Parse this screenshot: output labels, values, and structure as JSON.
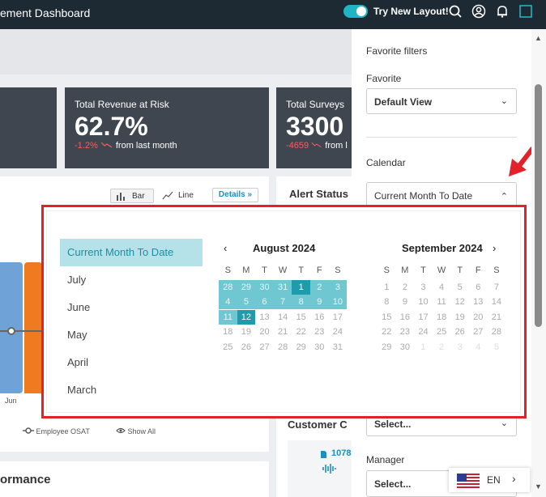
{
  "header": {
    "title": "ement Dashboard",
    "try_new_layout": "Try New Layout!",
    "toggle_on": true
  },
  "cards": [
    {
      "label": "",
      "value": "",
      "delta": "",
      "delta_text": ""
    },
    {
      "label": "Total Revenue at Risk",
      "value": "62.7%",
      "delta": "-1.2%",
      "delta_text": "from last month"
    },
    {
      "label": "Total Surveys",
      "value": "3300",
      "delta": "-4659",
      "delta_text": "from l"
    }
  ],
  "chart_panel": {
    "bar_label": "Bar",
    "line_label": "Line",
    "details_label": "Details »",
    "x_tick": "Jun",
    "legend_employee": "Employee OSAT",
    "legend_show_all": "Show All",
    "bottom_title": "ormance"
  },
  "alert_panel": {
    "title": "Alert Status"
  },
  "customer_panel": {
    "title": "Customer C",
    "count": "1078"
  },
  "filters": {
    "favorite_filters": "Favorite filters",
    "favorite_label": "Favorite",
    "favorite_value": "Default View",
    "calendar_label": "Calendar",
    "calendar_value": "Current Month To Date",
    "select_placeholder": "Select...",
    "manager_label": "Manager",
    "manager_value": "Select..."
  },
  "language": {
    "code": "EN"
  },
  "calendar": {
    "presets": [
      "Current Month To Date",
      "July",
      "June",
      "May",
      "April",
      "March"
    ],
    "active_preset": 0,
    "months": [
      {
        "title": "August 2024",
        "weekdays": [
          "S",
          "M",
          "T",
          "W",
          "T",
          "F",
          "S"
        ],
        "weeks": [
          [
            "28",
            "29",
            "30",
            "31",
            "1",
            "2",
            "3"
          ],
          [
            "4",
            "5",
            "6",
            "7",
            "8",
            "9",
            "10"
          ],
          [
            "11",
            "12",
            "13",
            "14",
            "15",
            "16",
            "17"
          ],
          [
            "18",
            "19",
            "20",
            "21",
            "22",
            "23",
            "24"
          ],
          [
            "25",
            "26",
            "27",
            "28",
            "29",
            "30",
            "31"
          ]
        ],
        "range_start": "1",
        "range_end": "12"
      },
      {
        "title": "September 2024",
        "weekdays": [
          "S",
          "M",
          "T",
          "W",
          "T",
          "F",
          "S"
        ],
        "weeks": [
          [
            "1",
            "2",
            "3",
            "4",
            "5",
            "6",
            "7"
          ],
          [
            "8",
            "9",
            "10",
            "11",
            "12",
            "13",
            "14"
          ],
          [
            "15",
            "16",
            "17",
            "18",
            "19",
            "20",
            "21"
          ],
          [
            "22",
            "23",
            "24",
            "25",
            "26",
            "27",
            "28"
          ],
          [
            "29",
            "30",
            "1",
            "2",
            "3",
            "4",
            "5"
          ]
        ]
      }
    ]
  },
  "colors": {
    "accent": "#1fb5c4",
    "highlight": "#e3212b",
    "range": "#6fc7d1",
    "range_edge": "#1e9cae"
  }
}
